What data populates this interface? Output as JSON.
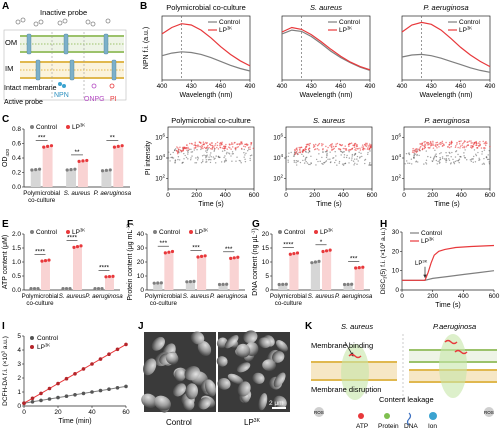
{
  "panels": {
    "A": {
      "letter": "A",
      "inactive_label": "Inactive probe",
      "om": "OM",
      "im": "IM",
      "intact_label": "Intact membrane",
      "active_label": "Active probe",
      "probes": [
        "NPN",
        "ONPG",
        "PI"
      ]
    },
    "B": {
      "letter": "B"
    },
    "C": {
      "letter": "C"
    },
    "D": {
      "letter": "D"
    },
    "E": {
      "letter": "E"
    },
    "F": {
      "letter": "F"
    },
    "G": {
      "letter": "G"
    },
    "H": {
      "letter": "H"
    },
    "I": {
      "letter": "I"
    },
    "J": {
      "letter": "J",
      "left_label": "Control",
      "right_label": "LP",
      "right_sup": "3K",
      "scale_bar": "2 μm"
    },
    "K": {
      "letter": "K",
      "s_aureus": "S. aureus",
      "p_aeruginosa": "P.aeruginosa",
      "membrane_binding": "Membrane binding",
      "membrane_disruption": "Membrane disruption",
      "content_leakage": "Content leakage",
      "legend": [
        "ATP",
        "Protein",
        "DNA",
        "Ion"
      ],
      "ros": "ROS"
    }
  },
  "legend": {
    "control": "Control",
    "lp": "LP",
    "lp_sup": "3K"
  },
  "colors": {
    "control": "#7f7f7f",
    "lp": "#e8383b",
    "lp_bar": "#f9d3d3",
    "ctrl_bar": "#d6d6d6"
  },
  "chart_data": [
    {
      "panel": "B",
      "type": "line",
      "ylabel": "NPN f.i. (a.u.)",
      "xlabel": "Wavelength (nm)",
      "xlim": [
        400,
        490
      ],
      "xticks": [
        400,
        430,
        460,
        490
      ],
      "marker": 420,
      "subplots": [
        {
          "title": "Polymicrobial co-culture",
          "italic": false,
          "series": [
            {
              "name": "Control",
              "x": [
                400,
                410,
                420,
                430,
                440,
                450,
                460,
                470,
                480,
                490
              ],
              "y": [
                0.38,
                0.42,
                0.44,
                0.43,
                0.4,
                0.35,
                0.29,
                0.23,
                0.18,
                0.14
              ]
            },
            {
              "name": "LP3K",
              "x": [
                400,
                410,
                420,
                430,
                440,
                450,
                460,
                470,
                480,
                490
              ],
              "y": [
                0.72,
                0.82,
                0.88,
                0.86,
                0.78,
                0.66,
                0.52,
                0.4,
                0.3,
                0.22
              ]
            }
          ]
        },
        {
          "title": "S. aureus",
          "italic": true,
          "series": [
            {
              "name": "Control",
              "x": [
                400,
                410,
                420,
                430,
                440,
                450,
                460,
                470,
                480,
                490
              ],
              "y": [
                0.72,
                0.78,
                0.76,
                0.68,
                0.57,
                0.45,
                0.35,
                0.27,
                0.2,
                0.15
              ]
            },
            {
              "name": "LP3K",
              "x": [
                400,
                410,
                420,
                430,
                440,
                450,
                460,
                470,
                480,
                490
              ],
              "y": [
                0.75,
                0.82,
                0.79,
                0.71,
                0.6,
                0.48,
                0.37,
                0.28,
                0.21,
                0.16
              ]
            }
          ]
        },
        {
          "title": "P. aeruginosa",
          "italic": true,
          "series": [
            {
              "name": "Control",
              "x": [
                400,
                410,
                420,
                430,
                440,
                450,
                460,
                470,
                480,
                490
              ],
              "y": [
                0.36,
                0.39,
                0.4,
                0.38,
                0.34,
                0.29,
                0.24,
                0.19,
                0.15,
                0.12
              ]
            },
            {
              "name": "LP3K",
              "x": [
                400,
                410,
                420,
                430,
                440,
                450,
                460,
                470,
                480,
                490
              ],
              "y": [
                0.75,
                0.86,
                0.9,
                0.87,
                0.78,
                0.65,
                0.51,
                0.39,
                0.29,
                0.21
              ]
            }
          ]
        }
      ]
    },
    {
      "panel": "C",
      "type": "bar",
      "ylabel": "OD",
      "ylabel_sub": "420",
      "categories": [
        "Polymicrobial co-culture",
        "S. aureus",
        "P. aeruginosa"
      ],
      "category_lines": [
        [
          "Polymicrobial",
          "co-culture"
        ],
        [
          "S. aureus"
        ],
        [
          "P. aeruginosa"
        ]
      ],
      "italic": [
        false,
        true,
        true
      ],
      "ylim": [
        0.0,
        0.8
      ],
      "yticks": [
        0.0,
        0.2,
        0.4,
        0.6,
        0.8
      ],
      "yfmt": 1,
      "series": [
        {
          "name": "Control",
          "values": [
            0.24,
            0.24,
            0.23
          ]
        },
        {
          "name": "LP3K",
          "values": [
            0.56,
            0.36,
            0.56
          ]
        }
      ],
      "significance": [
        "***",
        "**",
        "**"
      ]
    },
    {
      "panel": "D",
      "type": "scatter",
      "ylabel": "PI intensity",
      "xlabel": "Time (s)",
      "xlim": [
        0,
        600
      ],
      "xticks": [
        0,
        200,
        400,
        600
      ],
      "ylog": true,
      "yticks_exp": [
        2,
        4,
        6
      ],
      "subplots": [
        {
          "title": "Polymicrobial co-culture",
          "italic": false,
          "control_level": 4.4,
          "lp_level": 5.2
        },
        {
          "title": "S. aureus",
          "italic": true,
          "control_level": 4.2,
          "lp_level": 5.1
        },
        {
          "title": "P. aeruginosa",
          "italic": true,
          "control_level": 4.3,
          "lp_level": 5.3
        }
      ]
    },
    {
      "panel": "E",
      "type": "bar",
      "ylabel": "ATP content (μM)",
      "categories": [
        "Polymicrobial co-culture",
        "S. aureus",
        "P. aeruginosa"
      ],
      "category_lines": [
        [
          "Polymicrobial",
          "co-culture"
        ],
        [
          "S. aureus"
        ],
        [
          "P. aeruginosa"
        ]
      ],
      "italic": [
        false,
        true,
        true
      ],
      "ylim": [
        0.0,
        2.0
      ],
      "yticks": [
        0.0,
        0.5,
        1.0,
        1.5,
        2.0
      ],
      "yfmt": 1,
      "series": [
        {
          "name": "Control",
          "values": [
            0.05,
            0.05,
            0.05
          ]
        },
        {
          "name": "LP3K",
          "values": [
            1.05,
            1.55,
            0.48
          ]
        }
      ],
      "significance": [
        "****",
        "****",
        "****"
      ]
    },
    {
      "panel": "F",
      "type": "bar",
      "ylabel": "Protein content (μg mL",
      "ylabel_sup": "-1",
      "ylabel_end": ")",
      "categories": [
        "Polymicrobial co-culture",
        "S. aureus",
        "P. aeruginosa"
      ],
      "category_lines": [
        [
          "Polymicrobial",
          "co-culture"
        ],
        [
          "S. aureus"
        ],
        [
          "P. aeruginosa"
        ]
      ],
      "italic": [
        false,
        true,
        true
      ],
      "ylim": [
        0,
        40
      ],
      "yticks": [
        0,
        10,
        20,
        30,
        40
      ],
      "yfmt": 0,
      "series": [
        {
          "name": "Control",
          "values": [
            5,
            6,
            4
          ]
        },
        {
          "name": "LP3K",
          "values": [
            27,
            24,
            23
          ]
        }
      ],
      "significance": [
        "***",
        "***",
        "***"
      ]
    },
    {
      "panel": "G",
      "type": "bar",
      "ylabel": "DNA content (ng μL",
      "ylabel_sup": "-1",
      "ylabel_end": ")",
      "categories": [
        "Polymicrobial co-culture",
        "S. aureus",
        "P. aeruginosa"
      ],
      "category_lines": [
        [
          "Polymicrobial",
          "co-culture"
        ],
        [
          "S. aureus"
        ],
        [
          "P. aeruginosa"
        ]
      ],
      "italic": [
        false,
        true,
        true
      ],
      "ylim": [
        0,
        20
      ],
      "yticks": [
        0,
        5,
        10,
        15,
        20
      ],
      "yfmt": 0,
      "series": [
        {
          "name": "Control",
          "values": [
            2,
            10,
            2
          ]
        },
        {
          "name": "LP3K",
          "values": [
            13,
            14,
            8
          ]
        }
      ],
      "significance": [
        "****",
        "*",
        "***"
      ]
    },
    {
      "panel": "H",
      "type": "line",
      "ylabel": "DiSC",
      "ylabel_sub": "3",
      "ylabel_mid": "(5) f.i. (×10",
      "ylabel_sup": "3",
      "ylabel_end": " a.u.)",
      "xlabel": "Time (s)",
      "xlim": [
        0,
        600
      ],
      "xticks": [
        0,
        200,
        400,
        600
      ],
      "ylim": [
        0,
        30
      ],
      "yticks": [
        0,
        10,
        20,
        30
      ],
      "annotation": "LP",
      "annotation_sup": "3K",
      "annotation_x": 150,
      "series": [
        {
          "name": "Control",
          "x": [
            0,
            100,
            150,
            200,
            300,
            400,
            500,
            600
          ],
          "y": [
            5,
            5,
            5,
            6,
            7,
            8,
            9,
            10
          ]
        },
        {
          "name": "LP3K",
          "x": [
            0,
            100,
            150,
            170,
            190,
            210,
            240,
            280,
            350,
            450,
            600
          ],
          "y": [
            5,
            5,
            5,
            9,
            14,
            18,
            20,
            21,
            22,
            22.5,
            23
          ]
        }
      ]
    },
    {
      "panel": "I",
      "type": "line",
      "ylabel": "DCFH-DA f.i. (×10",
      "ylabel_sup": "3",
      "ylabel_end": " a.u.)",
      "xlabel": "Time (min)",
      "xlim": [
        0,
        60
      ],
      "xticks": [
        0,
        20,
        40,
        60
      ],
      "ylim": [
        0,
        5
      ],
      "yticks": [
        0,
        1,
        2,
        3,
        4,
        5
      ],
      "series": [
        {
          "name": "Control",
          "x": [
            0,
            5,
            10,
            15,
            20,
            25,
            30,
            35,
            40,
            45,
            50,
            55,
            60
          ],
          "y": [
            0.2,
            0.3,
            0.4,
            0.5,
            0.6,
            0.7,
            0.8,
            0.9,
            1.0,
            1.1,
            1.2,
            1.3,
            1.4
          ]
        },
        {
          "name": "LP3K",
          "x": [
            0,
            5,
            10,
            15,
            20,
            25,
            30,
            35,
            40,
            45,
            50,
            55,
            60
          ],
          "y": [
            0.2,
            0.55,
            0.9,
            1.25,
            1.6,
            1.95,
            2.3,
            2.65,
            3.0,
            3.35,
            3.7,
            4.05,
            4.4
          ]
        }
      ]
    }
  ]
}
